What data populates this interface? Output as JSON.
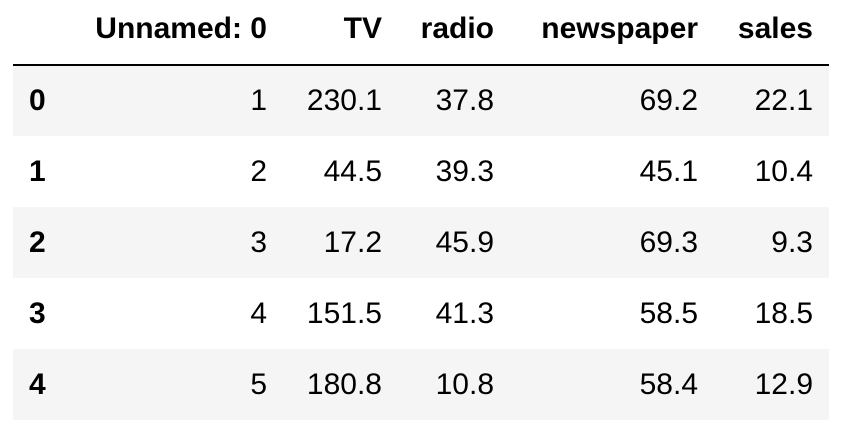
{
  "table": {
    "columns": [
      "",
      "Unnamed: 0",
      "TV",
      "radio",
      "newspaper",
      "sales"
    ],
    "rows": [
      {
        "index": "0",
        "cells": [
          "1",
          "230.1",
          "37.8",
          "69.2",
          "22.1"
        ]
      },
      {
        "index": "1",
        "cells": [
          "2",
          "44.5",
          "39.3",
          "45.1",
          "10.4"
        ]
      },
      {
        "index": "2",
        "cells": [
          "3",
          "17.2",
          "45.9",
          "69.3",
          "9.3"
        ]
      },
      {
        "index": "3",
        "cells": [
          "4",
          "151.5",
          "41.3",
          "58.5",
          "18.5"
        ]
      },
      {
        "index": "4",
        "cells": [
          "5",
          "180.8",
          "10.8",
          "58.4",
          "12.9"
        ]
      }
    ]
  }
}
